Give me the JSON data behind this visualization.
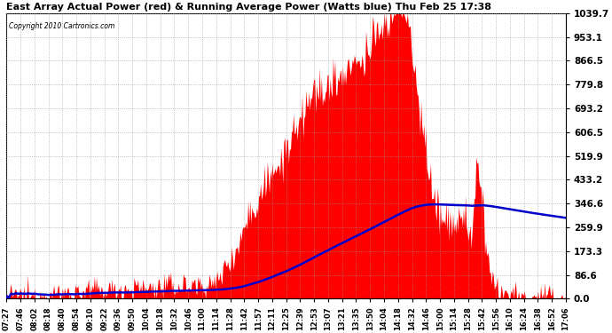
{
  "title": "East Array Actual Power (red) & Running Average Power (Watts blue) Thu Feb 25 17:38",
  "copyright": "Copyright 2010 Cartronics.com",
  "background_color": "#ffffff",
  "plot_bg_color": "#ffffff",
  "grid_color": "#aaaaaa",
  "actual_color": "#ff0000",
  "average_color": "#0000cc",
  "ymax": 1039.7,
  "ymin": 0.0,
  "yticks": [
    0.0,
    86.6,
    173.3,
    259.9,
    346.6,
    433.2,
    519.9,
    606.5,
    693.2,
    779.8,
    866.5,
    953.1,
    1039.7
  ],
  "xtick_labels": [
    "07:27",
    "07:46",
    "08:02",
    "08:18",
    "08:40",
    "08:54",
    "09:10",
    "09:22",
    "09:36",
    "09:50",
    "10:04",
    "10:18",
    "10:32",
    "10:46",
    "11:00",
    "11:14",
    "11:28",
    "11:42",
    "11:57",
    "12:11",
    "12:25",
    "12:39",
    "12:53",
    "13:07",
    "13:21",
    "13:35",
    "13:50",
    "14:04",
    "14:18",
    "14:32",
    "14:46",
    "15:00",
    "15:14",
    "15:28",
    "15:42",
    "15:56",
    "16:10",
    "16:24",
    "16:38",
    "16:52",
    "17:06"
  ],
  "n_points": 580
}
